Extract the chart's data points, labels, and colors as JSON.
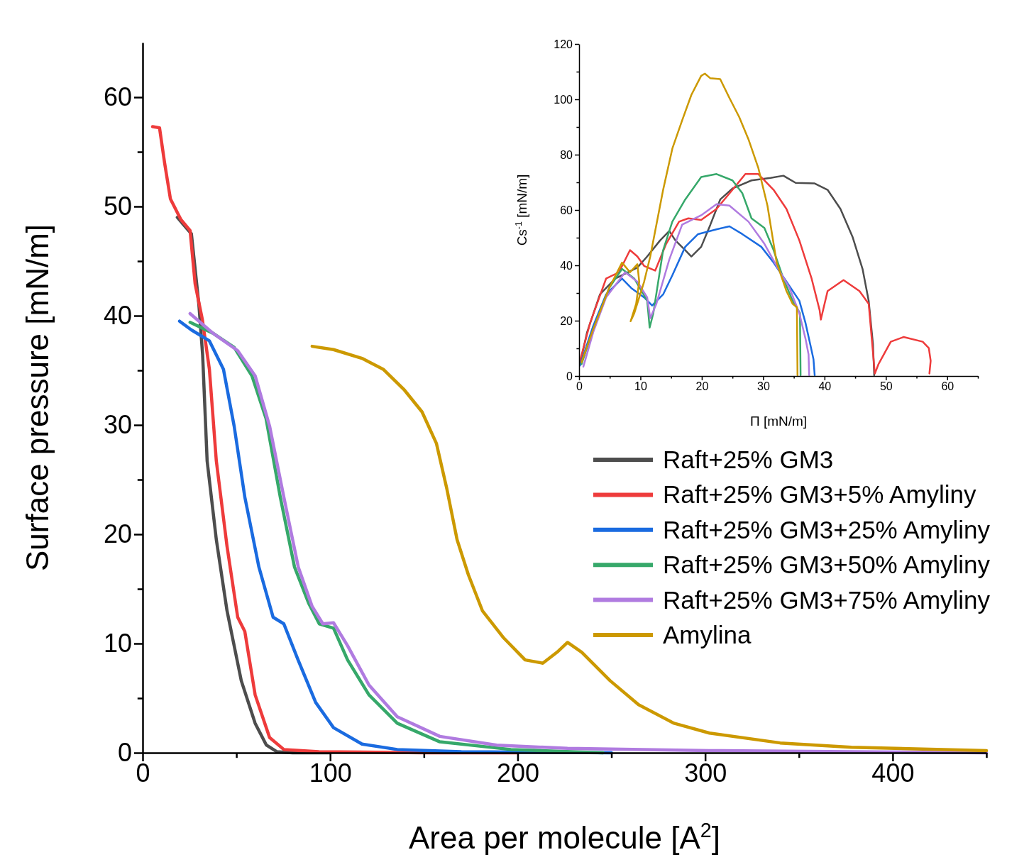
{
  "chart_data": [
    {
      "type": "line",
      "xlabel": "Area per molecule [A$^{2}$]",
      "ylabel": "Surface pressure [mN/m]",
      "xlim": [
        0,
        450
      ],
      "ylim": [
        0,
        65
      ],
      "xticks": [
        0,
        {
          "value": 50,
          "label": null
        },
        100,
        {
          "value": 150,
          "label": null
        },
        200,
        {
          "value": 250,
          "label": null
        },
        300,
        {
          "value": 350,
          "label": null
        },
        400,
        {
          "value": 450,
          "label": null
        }
      ],
      "yticks": [
        0,
        {
          "value": 5,
          "label": null
        },
        10,
        {
          "value": 15,
          "label": null
        },
        20,
        {
          "value": 25,
          "label": null
        },
        30,
        {
          "value": 35,
          "label": null
        },
        40,
        {
          "value": 45,
          "label": null
        },
        50,
        {
          "value": 55,
          "label": null
        },
        60
      ],
      "grid": false,
      "legend": "right",
      "marker": "none",
      "line_style": "solid",
      "series": [
        {
          "name": "Raft+25% GM3",
          "color": "#4d4d4d",
          "x": [
            18.5,
            26,
            30,
            32,
            34.4,
            39.3,
            45,
            52.6,
            60,
            66,
            71.5,
            80,
            100
          ],
          "values": [
            49,
            47.5,
            41,
            36.4,
            26.7,
            19.5,
            13,
            6.6,
            2.7,
            0.7,
            0.1,
            0,
            0
          ]
        },
        {
          "name": "Raft+25% GM3+5% Amyliny",
          "color": "#ee3b3b",
          "x": [
            5.3,
            9,
            11.7,
            14.8,
            20.4,
            25.3,
            28,
            31.8,
            35.6,
            39.3,
            45,
            50.7,
            54.5,
            60,
            67.7,
            75.3,
            94,
            150,
            200
          ],
          "values": [
            57.3,
            57.2,
            54,
            50.7,
            48.8,
            47.8,
            42.9,
            39.7,
            35.1,
            26.7,
            18.9,
            12.4,
            11.1,
            5.3,
            1.4,
            0.3,
            0.1,
            0,
            0
          ]
        },
        {
          "name": "Raft+25% GM3+25% Amyliny",
          "color": "#1a6be0",
          "x": [
            19.7,
            26,
            35.6,
            43.1,
            48.8,
            54.5,
            62,
            69.6,
            75.3,
            82.9,
            92.3,
            101.8,
            117,
            135.8,
            170,
            250
          ],
          "values": [
            39.5,
            38.7,
            37.7,
            35.1,
            29.9,
            23.4,
            17,
            12.4,
            11.8,
            8.5,
            4.6,
            2.3,
            0.8,
            0.3,
            0.1,
            0
          ]
        },
        {
          "name": "Raft+25% GM3+50% Amyliny",
          "color": "#36a86a",
          "x": [
            25.3,
            37.5,
            48.8,
            58.3,
            65.8,
            73.4,
            81,
            88.5,
            94.2,
            101.8,
            109.3,
            120.7,
            135.8,
            158.5,
            196.4,
            245.5
          ],
          "values": [
            39.4,
            38.4,
            37.1,
            34.5,
            30.6,
            23.4,
            17,
            13.7,
            11.8,
            11.4,
            8.5,
            5.3,
            2.7,
            1,
            0.3,
            0
          ]
        },
        {
          "name": "Raft+25% GM3+75% Amyliny",
          "color": "#b07be0",
          "x": [
            25.3,
            37.5,
            50.7,
            60,
            67.7,
            75.3,
            83,
            90.4,
            96.1,
            101.8,
            109.3,
            120.7,
            135.8,
            158.5,
            188.8,
            226.6,
            302,
            378,
            450
          ],
          "values": [
            40.2,
            38.4,
            36.8,
            34.5,
            29.9,
            23.4,
            17,
            13.4,
            11.8,
            11.9,
            9.8,
            6.2,
            3.3,
            1.5,
            0.7,
            0.4,
            0.2,
            0.1,
            0
          ]
        },
        {
          "name": "Amylina",
          "color": "#cc9900",
          "x": [
            90.4,
            101.8,
            117,
            128.3,
            139.6,
            149,
            156.7,
            162.3,
            167.7,
            173.7,
            181.2,
            192.6,
            204,
            213.4,
            221,
            226.6,
            234.2,
            249.3,
            264.5,
            283.4,
            302.3,
            340,
            378,
            450
          ],
          "values": [
            37.2,
            36.9,
            36.1,
            35.1,
            33.2,
            31.2,
            28.3,
            24.1,
            19.5,
            16.3,
            13,
            10.5,
            8.5,
            8.2,
            9.2,
            10.1,
            9.2,
            6.6,
            4.4,
            2.7,
            1.8,
            0.9,
            0.5,
            0.2
          ]
        }
      ]
    },
    {
      "type": "line",
      "xlabel": "Π [mN/m]",
      "ylabel": "Cs$^{-1}$ [mN/m]",
      "xlim": [
        0,
        65
      ],
      "ylim": [
        0,
        120
      ],
      "xticks": [
        0,
        {
          "value": 5,
          "label": null
        },
        10,
        {
          "value": 15,
          "label": null
        },
        20,
        {
          "value": 25,
          "label": null
        },
        30,
        {
          "value": 35,
          "label": null
        },
        40,
        {
          "value": 45,
          "label": null
        },
        50,
        {
          "value": 55,
          "label": null
        },
        60,
        {
          "value": 65,
          "label": null
        }
      ],
      "yticks": [
        0,
        {
          "value": 10,
          "label": null
        },
        20,
        {
          "value": 30,
          "label": null
        },
        40,
        {
          "value": 50,
          "label": null
        },
        60,
        {
          "value": 70,
          "label": null
        },
        80,
        {
          "value": 90,
          "label": null
        },
        100,
        {
          "value": 110,
          "label": null
        },
        120
      ],
      "grid": false,
      "legend": false,
      "marker": "none",
      "line_style": "solid",
      "series": [
        {
          "color": "#4d4d4d",
          "x": [
            0.15,
            1.3,
            3.4,
            5.9,
            9.5,
            11.1,
            13.2,
            14.7,
            15.7,
            17.3,
            18.3,
            19.9,
            21.4,
            23,
            25,
            28.1,
            31.2,
            33.3,
            35.3,
            38.4,
            40.5,
            42.6,
            44.6,
            46.2,
            47.2,
            47.9,
            48.1
          ],
          "values": [
            4.3,
            15.8,
            29.5,
            35.2,
            39.2,
            43.2,
            49,
            52.4,
            49,
            45.5,
            43.2,
            46.7,
            54.7,
            63.8,
            67.8,
            70.7,
            71.6,
            72.4,
            69.8,
            69.6,
            67.3,
            60.4,
            50.1,
            38.7,
            27.2,
            11.5,
            0.3
          ]
        },
        {
          "color": "#ee3b3b",
          "x": [
            0.15,
            1.8,
            4.4,
            6.5,
            8.3,
            9.5,
            10.6,
            12.4,
            14.2,
            16.3,
            17.8,
            19.9,
            22.4,
            25,
            27.1,
            29.2,
            31.7,
            33.8,
            35.9,
            37.9,
            39.2,
            39.4,
            40.5,
            43.1,
            45.7,
            47.2,
            47.7,
            48.2,
            48.8,
            50.8,
            52.9,
            56,
            57,
            57.3,
            57.1
          ],
          "values": [
            5.5,
            19.2,
            35.2,
            37.5,
            45.5,
            43.2,
            39.8,
            38.1,
            47.8,
            55.8,
            57,
            56.4,
            60.4,
            67.3,
            73,
            73,
            67.3,
            60.4,
            49,
            35.2,
            23.8,
            20.4,
            30.7,
            34.7,
            30.7,
            26.1,
            13.5,
            0.9,
            4.3,
            12.4,
            14.1,
            12.4,
            10.1,
            5.5,
            0.9
          ]
        },
        {
          "color": "#1a6be0",
          "x": [
            0.15,
            2.3,
            4.4,
            7,
            8.5,
            10.6,
            11.9,
            13.7,
            15.2,
            17.3,
            19.4,
            22.4,
            24.5,
            26.6,
            29.7,
            31.7,
            33.8,
            35.9,
            36.9,
            37.7,
            38.2,
            38.4
          ],
          "values": [
            3.8,
            18.1,
            29.5,
            35.2,
            31.8,
            28.4,
            25.5,
            29.5,
            36.4,
            46.7,
            51.3,
            53,
            54.1,
            51.3,
            46.7,
            41,
            34.1,
            27.2,
            19.2,
            11.2,
            6.1,
            0.3
          ]
        },
        {
          "color": "#36a86a",
          "x": [
            0.4,
            2.3,
            4.9,
            7,
            9,
            11.1,
            11.5,
            12.1,
            13.7,
            15.2,
            17.3,
            19.9,
            22.4,
            25,
            26.6,
            28.1,
            30.2,
            31.7,
            33.3,
            34.8,
            36,
            36.1
          ],
          "values": [
            4.3,
            16.9,
            31.8,
            38.7,
            35.2,
            27.2,
            17.5,
            22.7,
            45.5,
            55.8,
            63.8,
            71.9,
            73,
            70.7,
            66.1,
            57,
            53.5,
            45.5,
            35.2,
            27.2,
            22.7,
            0.3
          ]
        },
        {
          "color": "#b07be0",
          "x": [
            0.7,
            2.3,
            4.4,
            7.5,
            9.5,
            11.1,
            11.6,
            12.6,
            14.7,
            16.8,
            19.9,
            22.4,
            24.5,
            27.6,
            30.2,
            32.2,
            34.3,
            35.9,
            36.9,
            37.4,
            37.5
          ],
          "values": [
            3.4,
            15.8,
            28.4,
            37.5,
            34.1,
            28.4,
            20.9,
            26.1,
            42.1,
            54.7,
            58.1,
            62.1,
            61.6,
            55.8,
            47.8,
            39.8,
            31.8,
            22.7,
            13.5,
            7.8,
            0.3
          ]
        },
        {
          "color": "#cc9900",
          "x": [
            0.4,
            2.3,
            4.9,
            7,
            8.3,
            9.5,
            9.8,
            9.3,
            8.4,
            9,
            10.6,
            11.6,
            12.6,
            13.7,
            15.2,
            16.8,
            18.3,
            19.9,
            20.5,
            21.4,
            23,
            24.5,
            26.1,
            27.6,
            29.2,
            30.7,
            32.2,
            33.8,
            34.8,
            35.5,
            35.6
          ],
          "values": [
            4.9,
            16.9,
            31.8,
            41,
            37.5,
            40.4,
            34.1,
            26.1,
            19.8,
            22.7,
            34.1,
            43.2,
            54.7,
            67.3,
            82.2,
            92.4,
            101.6,
            108.5,
            109.3,
            107.6,
            107.3,
            100.5,
            93.6,
            85.6,
            75.3,
            61.6,
            41,
            30.7,
            26.1,
            24.9,
            0.3
          ]
        }
      ]
    }
  ]
}
